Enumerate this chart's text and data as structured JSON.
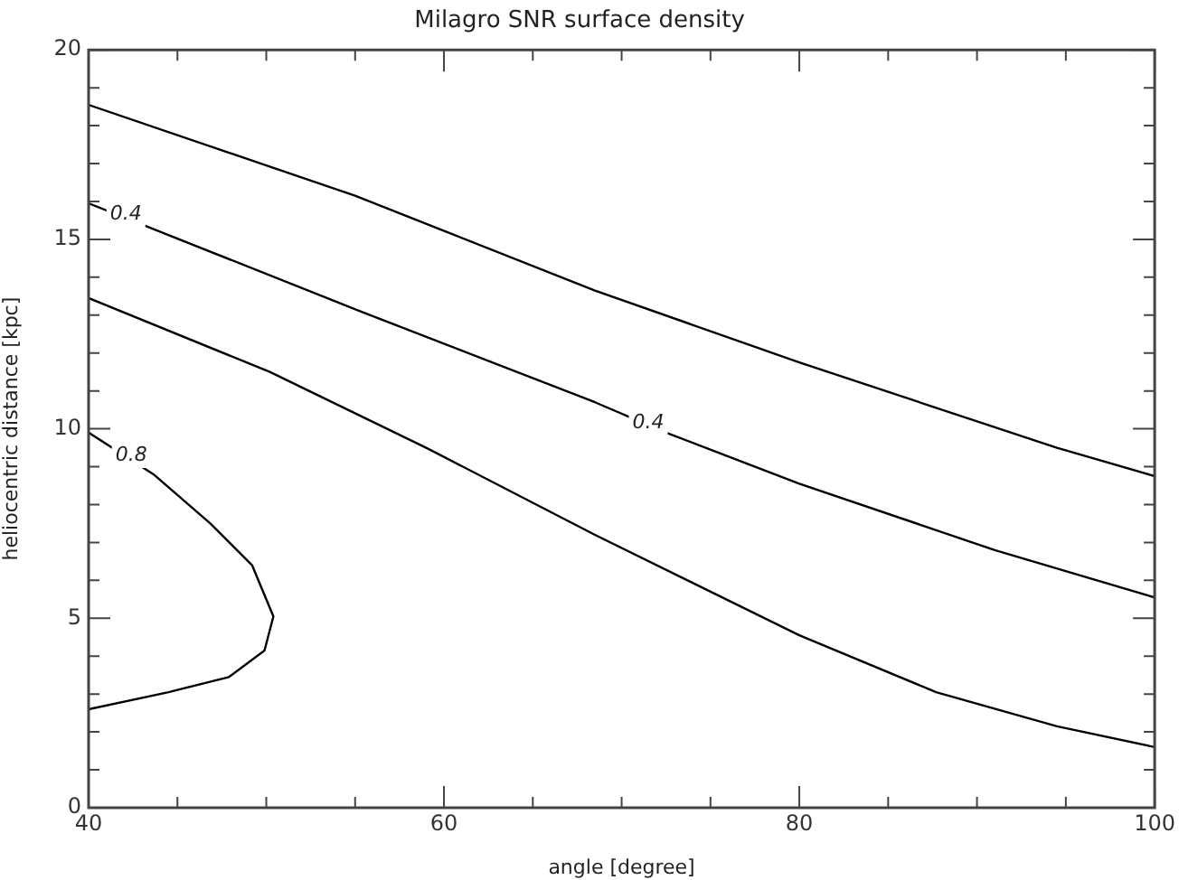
{
  "chart_data": {
    "type": "line",
    "title": "Milagro SNR surface density",
    "xlabel": "angle [degree]",
    "ylabel": "heliocentric distance [kpc]",
    "xlim": [
      40,
      100
    ],
    "ylim": [
      0,
      20
    ],
    "xticks": [
      40,
      {
        "value": 45,
        "label": null
      },
      {
        "value": 50,
        "label": null
      },
      {
        "value": 55,
        "label": null
      },
      60,
      {
        "value": 65,
        "label": null
      },
      {
        "value": 70,
        "label": null
      },
      {
        "value": 75,
        "label": null
      },
      80,
      {
        "value": 85,
        "label": null
      },
      {
        "value": 90,
        "label": null
      },
      {
        "value": 95,
        "label": null
      },
      100
    ],
    "yticks": [
      0,
      {
        "value": 1,
        "label": null
      },
      {
        "value": 2,
        "label": null
      },
      {
        "value": 3,
        "label": null
      },
      {
        "value": 4,
        "label": null
      },
      5,
      {
        "value": 6,
        "label": null
      },
      {
        "value": 7,
        "label": null
      },
      {
        "value": 8,
        "label": null
      },
      {
        "value": 9,
        "label": null
      },
      10,
      {
        "value": 11,
        "label": null
      },
      {
        "value": 12,
        "label": null
      },
      {
        "value": 13,
        "label": null
      },
      {
        "value": 14,
        "label": null
      },
      15,
      {
        "value": 16,
        "label": null
      },
      {
        "value": 17,
        "label": null
      },
      {
        "value": 18,
        "label": null
      },
      {
        "value": 19,
        "label": null
      },
      20
    ],
    "grid": false,
    "legend": false,
    "marker": "none",
    "line_style": "solid",
    "series": [
      {
        "color": "#000000",
        "x": [
          40,
          55,
          68.5,
          80,
          94.5,
          100
        ],
        "values": [
          18.55,
          16.15,
          13.65,
          11.75,
          9.5,
          8.75
        ]
      },
      {
        "color": "#000000",
        "x": [
          40,
          55.3,
          68.5,
          72.5,
          80,
          91,
          100
        ],
        "values": [
          15.95,
          13.1,
          10.7,
          9.9,
          8.55,
          6.8,
          5.55
        ]
      },
      {
        "color": "#000000",
        "x": [
          40,
          50.2,
          59,
          68.5,
          80,
          87.7,
          94.5,
          100
        ],
        "values": [
          13.45,
          11.5,
          9.5,
          7.2,
          4.55,
          3.05,
          2.15,
          1.6
        ]
      },
      {
        "color": "#000000",
        "x": [
          40,
          43.65,
          46.85,
          49.2,
          50.4,
          49.9,
          47.9,
          44.5,
          40
        ],
        "values": [
          9.9,
          8.8,
          7.5,
          6.4,
          5.05,
          4.15,
          3.45,
          3.05,
          2.6
        ]
      }
    ],
    "annotations": [
      {
        "text": "0.4",
        "x": 42.1,
        "y": 15.65
      },
      {
        "text": "0.4",
        "x": 71.5,
        "y": 10.15
      },
      {
        "text": "0.8",
        "x": 42.4,
        "y": 9.3
      }
    ]
  }
}
